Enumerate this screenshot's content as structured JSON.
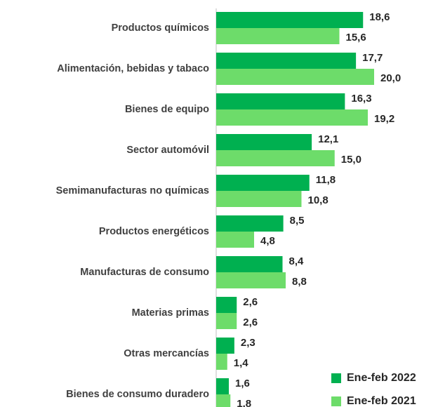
{
  "chart_data": {
    "type": "barh",
    "categories": [
      "Productos químicos",
      "Alimentación, bebidas y tabaco",
      "Bienes de equipo",
      "Sector automóvil",
      "Semimanufacturas no químicas",
      "Productos energéticos",
      "Manufacturas de consumo",
      "Materias primas",
      "Otras mercancías",
      "Bienes de consumo duradero"
    ],
    "series": [
      {
        "name": "Ene-feb 2022",
        "color": "#00b050",
        "values": [
          18.6,
          17.7,
          16.3,
          12.1,
          11.8,
          8.5,
          8.4,
          2.6,
          2.3,
          1.6
        ],
        "value_labels": [
          "18,6",
          "17,7",
          "16,3",
          "12,1",
          "11,8",
          "8,5",
          "8,4",
          "2,6",
          "2,3",
          "1,6"
        ]
      },
      {
        "name": "Ene-feb 2021",
        "color": "#6ddc6a",
        "values": [
          15.6,
          20.0,
          19.2,
          15.0,
          10.8,
          4.8,
          8.8,
          2.6,
          1.4,
          1.8
        ],
        "value_labels": [
          "15,6",
          "20,0",
          "19,2",
          "15,0",
          "10,8",
          "4,8",
          "8,8",
          "2,6",
          "1,4",
          "1,8"
        ]
      }
    ],
    "xlim": [
      0,
      28
    ],
    "legend": "lower right"
  }
}
